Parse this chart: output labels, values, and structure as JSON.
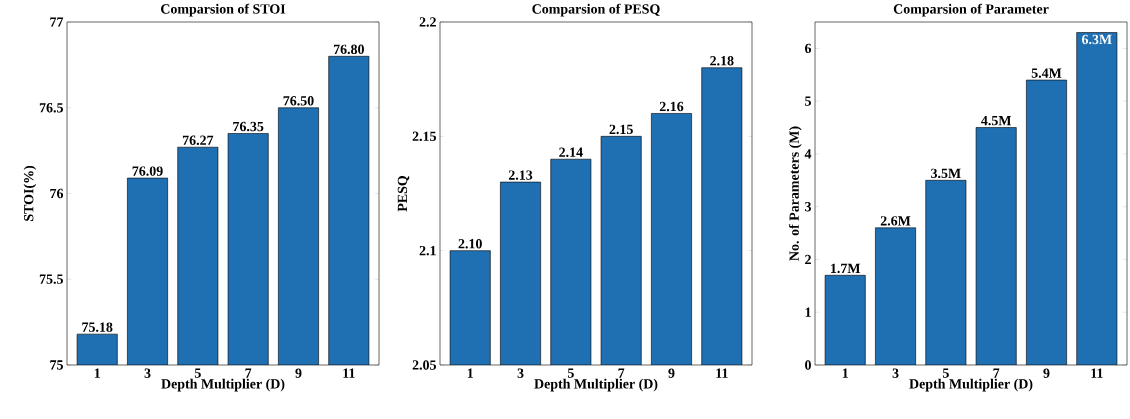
{
  "chart_data": [
    {
      "type": "bar",
      "title": "Comparsion of STOI",
      "xlabel": "Depth Multiplier (D)",
      "ylabel": "STOI(%)",
      "categories": [
        "1",
        "3",
        "5",
        "7",
        "9",
        "11"
      ],
      "values": [
        75.18,
        76.09,
        76.27,
        76.35,
        76.5,
        76.8
      ],
      "value_labels": [
        "75.18",
        "76.09",
        "76.27",
        "76.35",
        "76.50",
        "76.80"
      ],
      "color": "#1f6fb3",
      "ylim": [
        75,
        77
      ],
      "yticks": [
        75,
        75.5,
        76,
        76.5,
        77
      ]
    },
    {
      "type": "bar",
      "title": "Comparsion of PESQ",
      "xlabel": "Depth Multiplier (D)",
      "ylabel": "PESQ",
      "categories": [
        "1",
        "3",
        "5",
        "7",
        "9",
        "11"
      ],
      "values": [
        2.1,
        2.13,
        2.14,
        2.15,
        2.16,
        2.18
      ],
      "value_labels": [
        "2.10",
        "2.13",
        "2.14",
        "2.15",
        "2.16",
        "2.18"
      ],
      "color": "#1f6fb3",
      "ylim": [
        2.05,
        2.2
      ],
      "yticks": [
        2.05,
        2.1,
        2.15,
        2.2
      ]
    },
    {
      "type": "bar",
      "title": "Comparsion of Parameter",
      "xlabel": "Depth Multiplier (D)",
      "ylabel": "No. of Parameters (M)",
      "categories": [
        "1",
        "3",
        "5",
        "7",
        "9",
        "11"
      ],
      "values": [
        1.7,
        2.6,
        3.5,
        4.5,
        5.4,
        6.3
      ],
      "value_labels": [
        "1.7M",
        "2.6M",
        "3.5M",
        "4.5M",
        "5.4M",
        "6.3M"
      ],
      "color": "#1f6fb3",
      "ylim": [
        0,
        6.5
      ],
      "yticks": [
        0,
        1,
        2,
        3,
        4,
        5,
        6
      ]
    }
  ]
}
